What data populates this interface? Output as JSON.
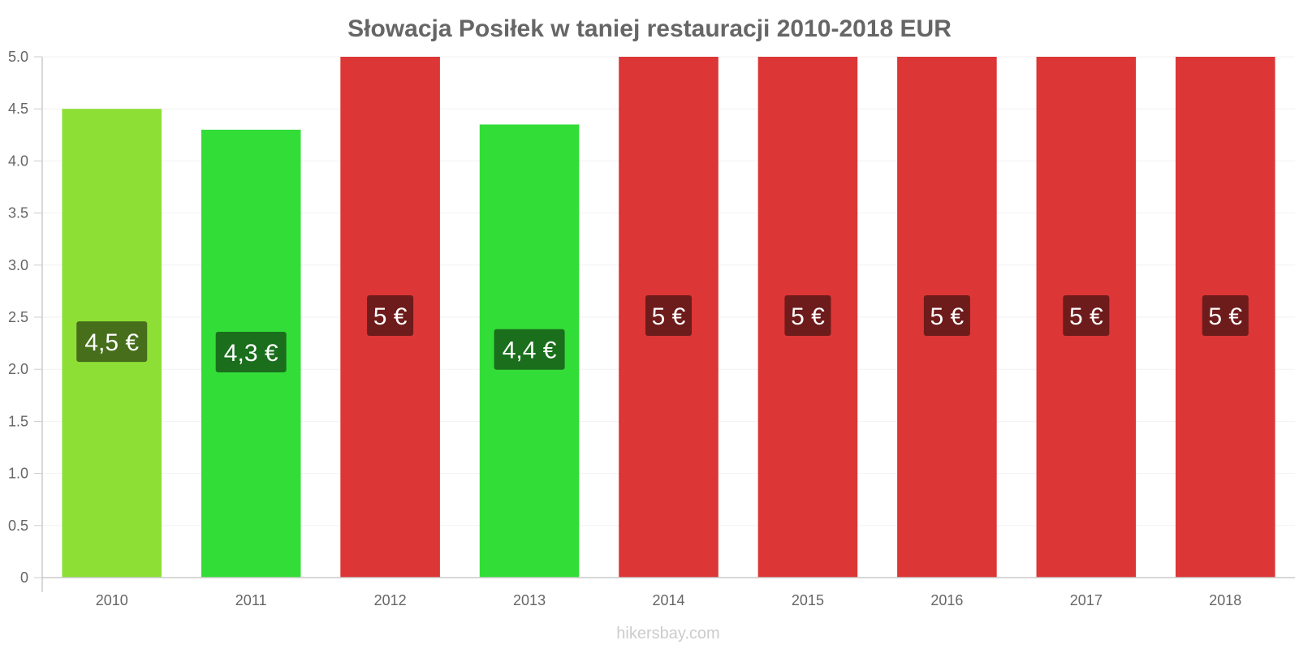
{
  "chart_data": {
    "type": "bar",
    "title": "Słowacja Posiłek w taniej restauracji 2010-2018 EUR",
    "categories": [
      "2010",
      "2011",
      "2012",
      "2013",
      "2014",
      "2015",
      "2016",
      "2017",
      "2018"
    ],
    "values": [
      4.5,
      4.3,
      5,
      4.35,
      5,
      5,
      5,
      5,
      5
    ],
    "data_labels": [
      "4,5 €",
      "4,3 €",
      "5 €",
      "4,4 €",
      "5 €",
      "5 €",
      "5 €",
      "5 €",
      "5 €"
    ],
    "bar_colors": [
      "#8ddf36",
      "#33dd38",
      "#dc3636",
      "#33dd38",
      "#dc3636",
      "#dc3636",
      "#dc3636",
      "#dc3636",
      "#dc3636"
    ],
    "label_bg_colors": [
      "#466e1b",
      "#1a6e1c",
      "#6e1b1b",
      "#1a6e1c",
      "#6e1b1b",
      "#6e1b1b",
      "#6e1b1b",
      "#6e1b1b",
      "#6e1b1b"
    ],
    "y_ticks": [
      "0",
      "0.5",
      "1.0",
      "1.5",
      "2.0",
      "2.5",
      "3.0",
      "3.5",
      "4.0",
      "4.5",
      "5.0"
    ],
    "ylim": [
      0,
      5
    ],
    "grid": true
  },
  "footer": {
    "credit": "hikersbay.com"
  }
}
